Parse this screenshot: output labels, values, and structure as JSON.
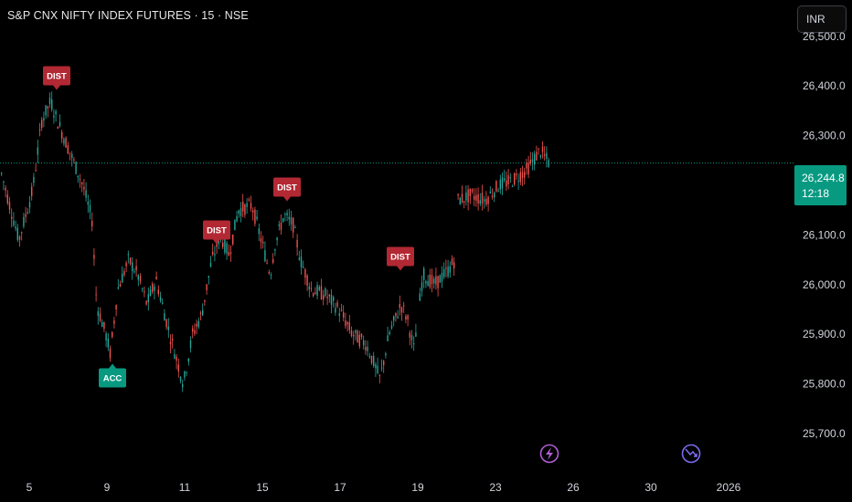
{
  "header": {
    "title": "S&P CNX NIFTY INDEX FUTURES · 15 · NSE",
    "currency": "INR"
  },
  "chart_data": {
    "type": "candlestick",
    "y_axis": {
      "ticks": [
        25700,
        25800,
        25900,
        26000,
        26100,
        26300,
        26400,
        26500
      ],
      "tick_labels": [
        "25,700.0",
        "25,800.0",
        "25,900.0",
        "26,000.0",
        "26,100.0",
        "26,300.0",
        "26,400.0",
        "26,500.0"
      ],
      "range": [
        25640,
        26560
      ]
    },
    "x_axis": {
      "labels": [
        "5",
        "9",
        "11",
        "15",
        "17",
        "19",
        "23",
        "26",
        "30",
        "2026"
      ]
    },
    "last_price": {
      "value": 26244.8,
      "label": "26,244.8",
      "countdown": "12:18"
    },
    "colors": {
      "up": "#26a69a",
      "down": "#ef5350",
      "acc": "#089981",
      "dist": "#b22833",
      "price_tag": "#089981"
    },
    "path": [
      [
        0,
        26230
      ],
      [
        20,
        26090
      ],
      [
        35,
        26190
      ],
      [
        45,
        26330
      ],
      [
        55,
        26370
      ],
      [
        60,
        26340
      ],
      [
        75,
        26270
      ],
      [
        90,
        26200
      ],
      [
        100,
        26130
      ],
      [
        105,
        25960
      ],
      [
        115,
        25900
      ],
      [
        120,
        25860
      ],
      [
        128,
        25990
      ],
      [
        140,
        26050
      ],
      [
        150,
        26020
      ],
      [
        160,
        25960
      ],
      [
        170,
        26010
      ],
      [
        185,
        25900
      ],
      [
        200,
        25800
      ],
      [
        210,
        25900
      ],
      [
        220,
        25940
      ],
      [
        230,
        26040
      ],
      [
        240,
        26100
      ],
      [
        250,
        26060
      ],
      [
        260,
        26150
      ],
      [
        275,
        26160
      ],
      [
        285,
        26090
      ],
      [
        295,
        26020
      ],
      [
        300,
        26080
      ],
      [
        310,
        26140
      ],
      [
        320,
        26120
      ],
      [
        328,
        26050
      ],
      [
        340,
        25990
      ],
      [
        355,
        25980
      ],
      [
        370,
        25950
      ],
      [
        385,
        25900
      ],
      [
        400,
        25880
      ],
      [
        415,
        25810
      ],
      [
        425,
        25900
      ],
      [
        438,
        25960
      ],
      [
        445,
        25930
      ],
      [
        452,
        25870
      ],
      [
        456,
        25930
      ],
      [
        462,
        26020
      ],
      [
        475,
        26000
      ],
      [
        490,
        26030
      ],
      [
        497,
        26050
      ],
      [
        500,
        26170
      ],
      [
        515,
        26180
      ],
      [
        530,
        26170
      ],
      [
        545,
        26200
      ],
      [
        560,
        26210
      ],
      [
        575,
        26230
      ],
      [
        590,
        26270
      ],
      [
        600,
        26245
      ]
    ],
    "gap_ranges": [
      [
        456,
        458
      ],
      [
        497,
        499
      ]
    ],
    "signals": [
      {
        "label": "DIST",
        "type": "dist",
        "price": 26380
      },
      {
        "label": "ACC",
        "type": "acc",
        "price": 25865
      },
      {
        "label": "DIST",
        "type": "dist",
        "price": 26110
      },
      {
        "label": "DIST",
        "type": "dist",
        "price": 26155
      },
      {
        "label": "DIST",
        "type": "dist",
        "price": 26045
      }
    ],
    "events": [
      {
        "icon": "lightning-icon"
      },
      {
        "icon": "dividend-arrow-icon"
      }
    ]
  }
}
